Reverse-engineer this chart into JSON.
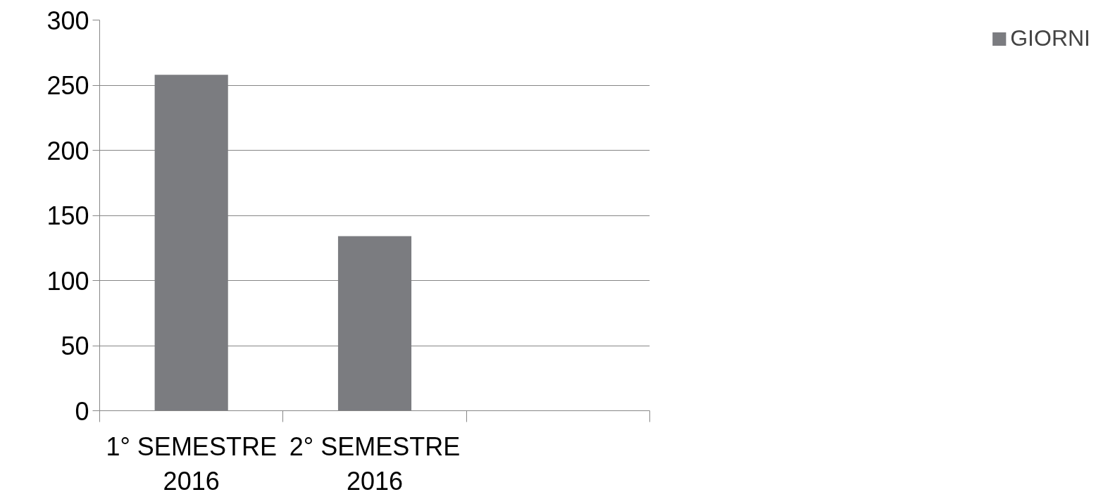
{
  "chart_data": {
    "type": "bar",
    "categories": [
      "1° SEMESTRE 2016",
      "2° SEMESTRE 2016",
      null
    ],
    "series": [
      {
        "name": "GIORNI",
        "color": "#7b7c80",
        "values": [
          258,
          134,
          null
        ]
      }
    ],
    "ylim": [
      0,
      300
    ],
    "yticks": [
      0,
      50,
      100,
      150,
      200,
      250,
      300
    ],
    "grid": "y",
    "legend": "right"
  }
}
